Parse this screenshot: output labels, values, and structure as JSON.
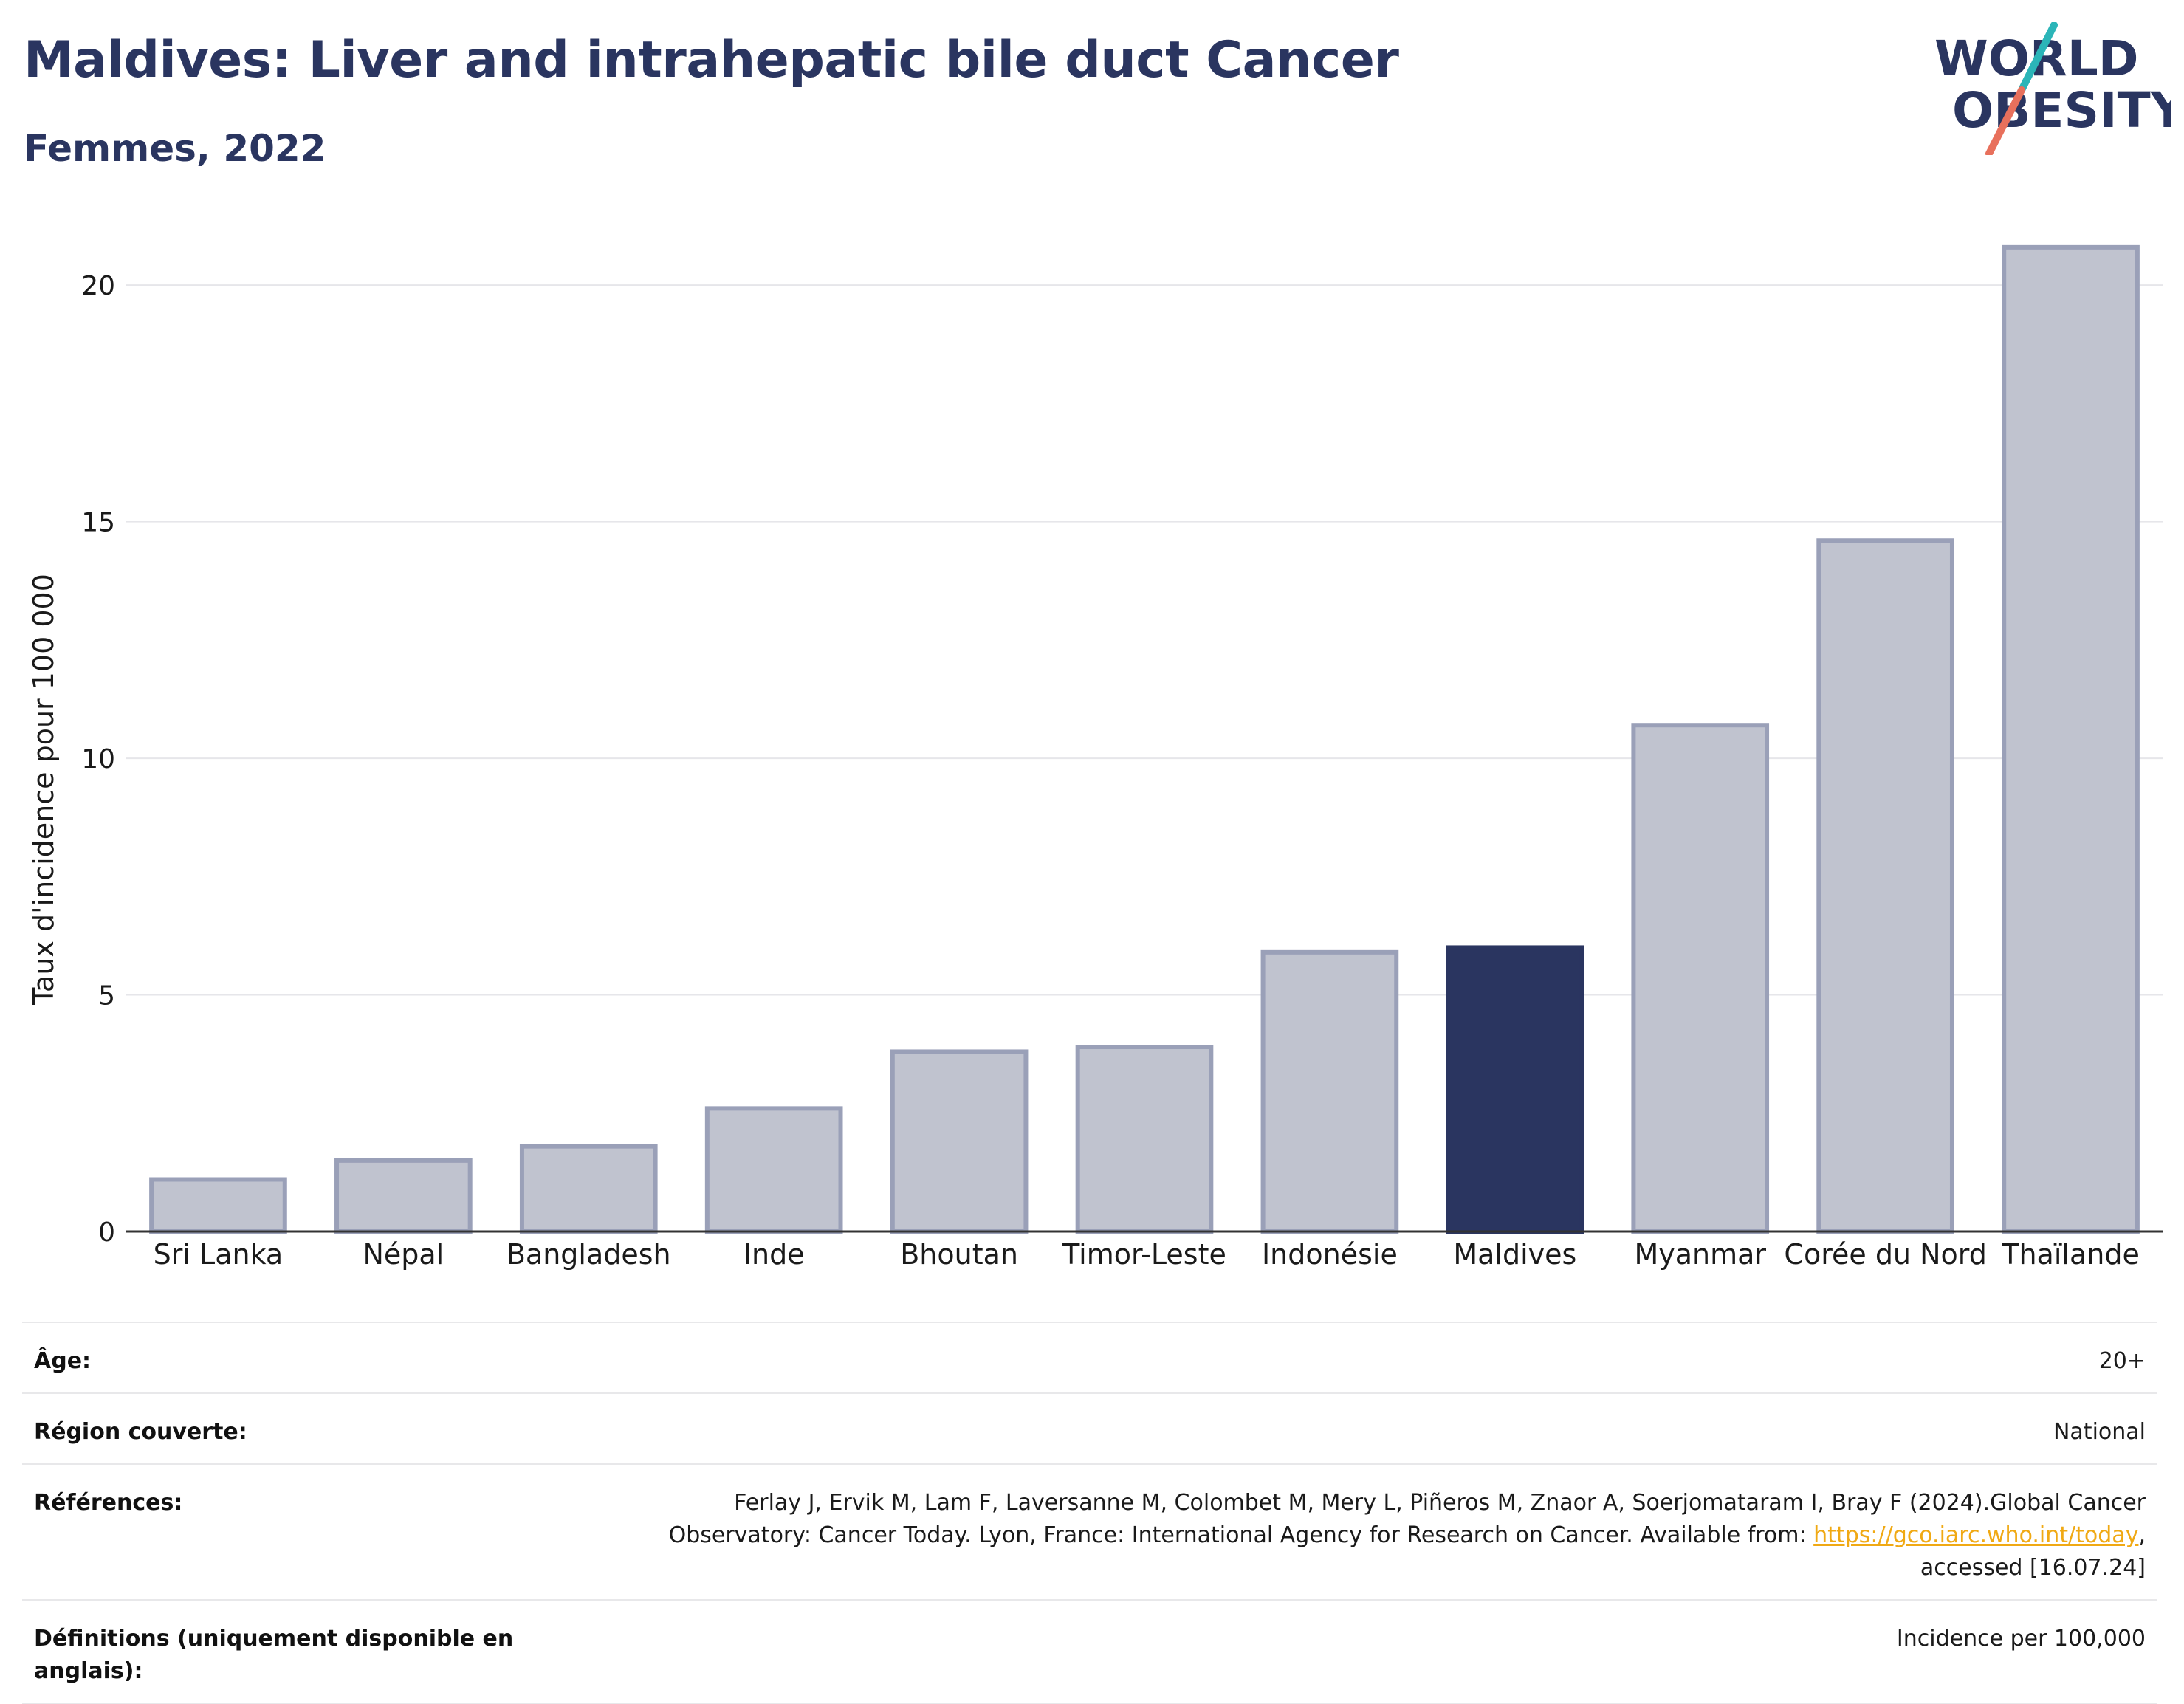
{
  "header": {
    "title": "Maldives: Liver and intrahepatic bile duct Cancer",
    "subtitle": "Femmes, 2022"
  },
  "logo": {
    "line1": "WORLD",
    "line2": "OBESITY",
    "accent_colors": [
      "#2bb5b8",
      "#e8705c"
    ]
  },
  "chart_data": {
    "type": "bar",
    "title": "",
    "ylabel": "Taux d'incidence pour 100 000",
    "xlabel": "",
    "ylim": [
      0,
      21.5
    ],
    "yticks": [
      0,
      5,
      10,
      15,
      20
    ],
    "grid": true,
    "categories": [
      "Sri Lanka",
      "Népal",
      "Bangladesh",
      "Inde",
      "Bhoutan",
      "Timor-Leste",
      "Indonésie",
      "Maldives",
      "Myanmar",
      "Corée du Nord",
      "Thaïlande"
    ],
    "values": [
      1.1,
      1.5,
      1.8,
      2.6,
      3.8,
      3.9,
      5.9,
      6.0,
      10.7,
      14.6,
      20.8
    ],
    "highlight": "Maldives",
    "colors": {
      "default": "#c0c3cf",
      "default_stroke": "#9aa0b8",
      "highlight": "#2a3560"
    }
  },
  "meta": {
    "rows": [
      {
        "label": "Âge:",
        "value": "20+"
      },
      {
        "label": "Région couverte:",
        "value": "National"
      },
      {
        "label": "Références:",
        "value_before": "Ferlay J, Ervik M, Lam F, Laversanne M, Colombet M, Mery L, Piñeros M, Znaor A, Soerjomataram I, Bray F (2024).Global Cancer Observatory: Cancer Today. Lyon, France: International Agency for Research on Cancer. Available from: ",
        "link": "https://gco.iarc.who.int/today",
        "value_after": ", accessed [16.07.24]"
      },
      {
        "label": "Définitions (uniquement disponible en anglais):",
        "value": "Incidence per 100,000"
      }
    ]
  }
}
